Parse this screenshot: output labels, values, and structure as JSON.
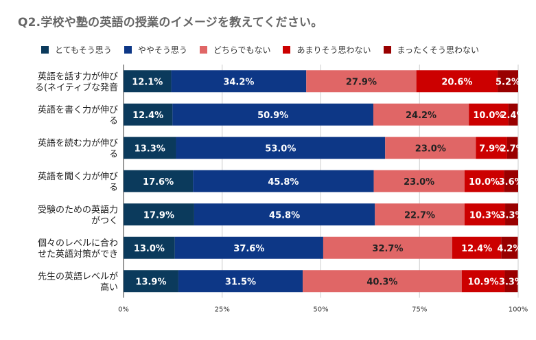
{
  "title": "Q2.学校や塾の英語の授業のイメージを教えてください。",
  "chart_data": {
    "type": "bar",
    "orientation": "horizontal",
    "stacked": true,
    "percent": true,
    "title": "Q2.学校や塾の英語の授業のイメージを教えてください。",
    "categories": [
      [
        "英語を話す力が伸び",
        "る(ネイティブな発音"
      ],
      [
        "英語を書く力が伸び",
        "る"
      ],
      [
        "英語を読む力が伸び",
        "る"
      ],
      [
        "英語を聞く力が伸び",
        "る"
      ],
      [
        "受験のための英語力",
        "がつく"
      ],
      [
        "個々のレベルに合わ",
        "せた英語対策ができ"
      ],
      [
        "先生の英語レベルが",
        "高い"
      ]
    ],
    "series": [
      {
        "name": "とてもそう思う",
        "color": "#0b3a5c",
        "values": [
          12.1,
          12.4,
          13.3,
          17.6,
          17.9,
          13.0,
          13.9
        ],
        "labels": [
          "12.1%",
          "12.4%",
          "13.3%",
          "17.6%",
          "17.9%",
          "13.0%",
          "13.9%"
        ]
      },
      {
        "name": "ややそう思う",
        "color": "#0d3786",
        "values": [
          34.2,
          50.9,
          53.0,
          45.8,
          45.8,
          37.6,
          31.5
        ],
        "labels": [
          "34.2%",
          "50.9%",
          "53.0%",
          "45.8%",
          "45.8%",
          "37.6%",
          "31.5%"
        ]
      },
      {
        "name": "どちらでもない",
        "color": "#e06666",
        "values": [
          27.9,
          24.2,
          23.0,
          23.0,
          22.7,
          32.7,
          40.3
        ],
        "labels": [
          "27.9%",
          "24.2%",
          "23.0%",
          "23.0%",
          "22.7%",
          "32.7%",
          "40.3%"
        ]
      },
      {
        "name": "あまりそう思わない",
        "color": "#cc0000",
        "values": [
          20.6,
          10.0,
          7.9,
          10.0,
          10.3,
          12.4,
          10.9
        ],
        "labels": [
          "20.6%",
          "10.0%",
          "7.9%",
          "10.0%",
          "10.3%",
          "12.4%",
          "10.9%"
        ]
      },
      {
        "name": "まったくそう思わない",
        "color": "#990000",
        "values": [
          5.2,
          2.4,
          2.7,
          3.6,
          3.3,
          4.2,
          3.3
        ],
        "labels": [
          "5.2%",
          "2.4%",
          "2.7%",
          "3.6%",
          "3.3%",
          "4.2%",
          "3.3%"
        ]
      }
    ],
    "xlim": [
      0,
      100
    ],
    "ticks": [
      "0%",
      "25%",
      "50%",
      "75%",
      "100%"
    ],
    "tick_values": [
      0,
      25,
      50,
      75,
      100
    ],
    "legend_position": "top",
    "grid": true
  }
}
